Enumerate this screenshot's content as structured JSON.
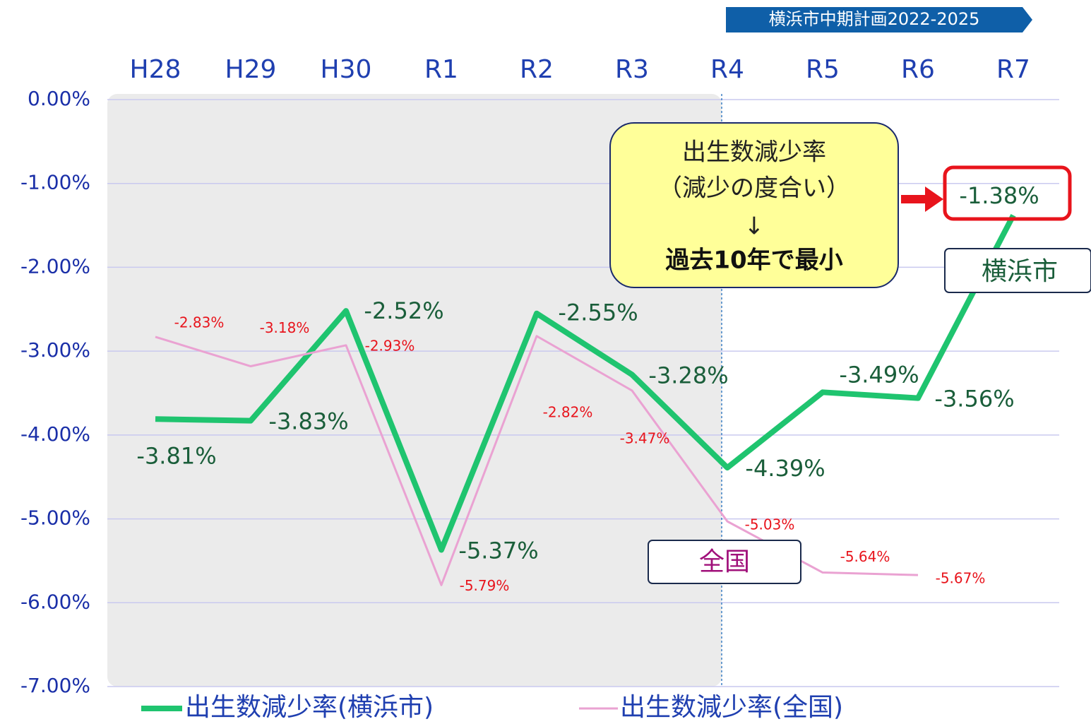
{
  "chart_data": {
    "type": "line",
    "banner": "横浜市中期計画2022-2025",
    "categories": [
      "H28",
      "H29",
      "H30",
      "R1",
      "R2",
      "R3",
      "R4",
      "R5",
      "R6",
      "R7"
    ],
    "series": [
      {
        "name": "出生数減少率(横浜市)",
        "color": "#1fc46f",
        "values": [
          -3.81,
          -3.83,
          -2.52,
          -5.37,
          -2.55,
          -3.28,
          -4.39,
          -3.49,
          -3.56,
          -1.38
        ],
        "value_labels": [
          "-3.81%",
          "-3.83%",
          "-2.52%",
          "-5.37%",
          "-2.55%",
          "-3.28%",
          "-4.39%",
          "-3.49%",
          "-3.56%",
          "-1.38%"
        ]
      },
      {
        "name": "出生数減少率(全国)",
        "color": "#eaa2d2",
        "values": [
          -2.83,
          -3.18,
          -2.93,
          -5.79,
          -2.82,
          -3.47,
          -5.03,
          -5.64,
          -5.67,
          null
        ],
        "value_labels": [
          "-2.83%",
          "-3.18%",
          "-2.93%",
          "-5.79%",
          "-2.82%",
          "-3.47%",
          "-5.03%",
          "-5.64%",
          "-5.67%",
          null
        ]
      }
    ],
    "ylim": [
      -7,
      0
    ],
    "yticks": [
      {
        "value": 0,
        "label": "0.00%"
      },
      {
        "value": -1,
        "label": "-1.00%"
      },
      {
        "value": -2,
        "label": "-2.00%"
      },
      {
        "value": -3,
        "label": "-3.00%"
      },
      {
        "value": -4,
        "label": "-4.00%"
      },
      {
        "value": -5,
        "label": "-5.00%"
      },
      {
        "value": -6,
        "label": "-6.00%"
      },
      {
        "value": -7,
        "label": "-7.00%"
      }
    ],
    "grid": true,
    "series_labels": [
      "横浜市",
      "全国"
    ],
    "callout": [
      "出生数減少率",
      "（減少の度合い）",
      "↓",
      "過去10年で最小"
    ]
  }
}
